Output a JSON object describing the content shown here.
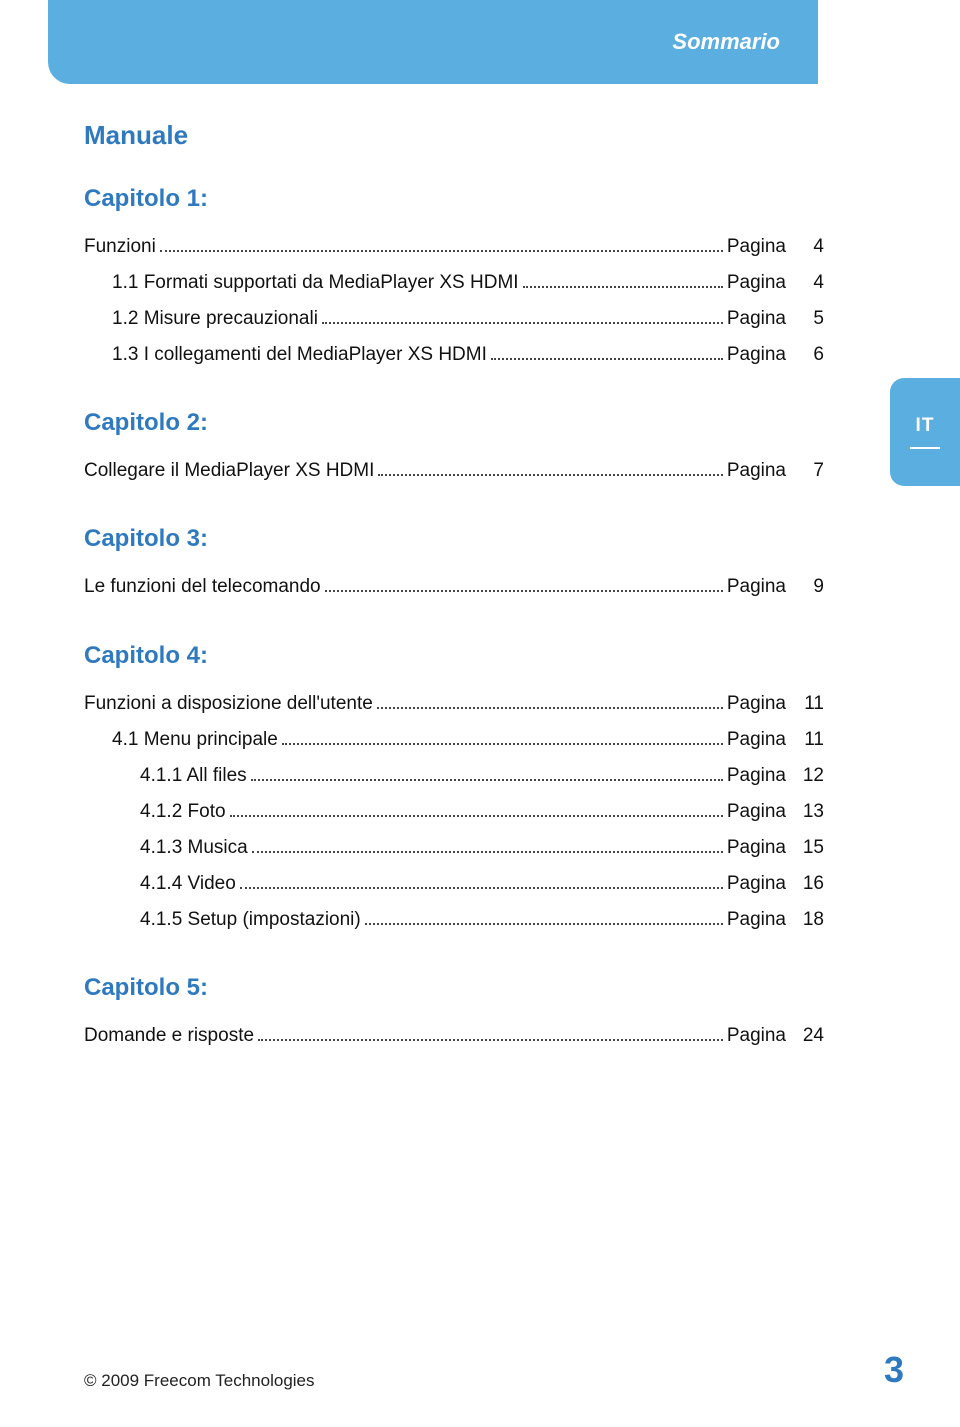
{
  "header": {
    "title": "Sommario"
  },
  "sideTab": {
    "label": "IT"
  },
  "manual": {
    "title": "Manuale"
  },
  "pageLabel": "Pagina",
  "chapters": [
    {
      "title": "Capitolo 1:",
      "entries": [
        {
          "text": "Funzioni",
          "page": "4",
          "indent": 0
        },
        {
          "text": "1.1 Formati supportati da MediaPlayer XS HDMI",
          "page": "4",
          "indent": 1
        },
        {
          "text": "1.2 Misure precauzionali",
          "page": "5",
          "indent": 1
        },
        {
          "text": "1.3 I collegamenti del MediaPlayer XS HDMI",
          "page": "6",
          "indent": 1
        }
      ]
    },
    {
      "title": "Capitolo 2:",
      "entries": [
        {
          "text": "Collegare il MediaPlayer XS HDMI",
          "page": "7",
          "indent": 0
        }
      ]
    },
    {
      "title": "Capitolo 3:",
      "entries": [
        {
          "text": "Le funzioni del telecomando",
          "page": "9",
          "indent": 0
        }
      ]
    },
    {
      "title": "Capitolo 4:",
      "entries": [
        {
          "text": "Funzioni a disposizione dell'utente",
          "page": "11",
          "indent": 0
        },
        {
          "text": "4.1 Menu principale",
          "page": "11",
          "indent": 1
        },
        {
          "text": "4.1.1 All files",
          "page": "12",
          "indent": 2
        },
        {
          "text": "4.1.2 Foto",
          "page": "13",
          "indent": 2
        },
        {
          "text": "4.1.3 Musica",
          "page": "15",
          "indent": 2
        },
        {
          "text": "4.1.4 Video",
          "page": "16",
          "indent": 2
        },
        {
          "text": "4.1.5 Setup (impostazioni)",
          "page": "18",
          "indent": 2
        }
      ]
    },
    {
      "title": "Capitolo 5:",
      "entries": [
        {
          "text": "Domande e risposte",
          "page": "24",
          "indent": 0
        }
      ]
    }
  ],
  "footer": {
    "copyright": "© 2009 Freecom Technologies",
    "pageNumber": "3"
  },
  "colors": {
    "brandBlue": "#5aaee0",
    "headingBlue": "#2f7abf",
    "text": "#111111",
    "white": "#ffffff"
  }
}
